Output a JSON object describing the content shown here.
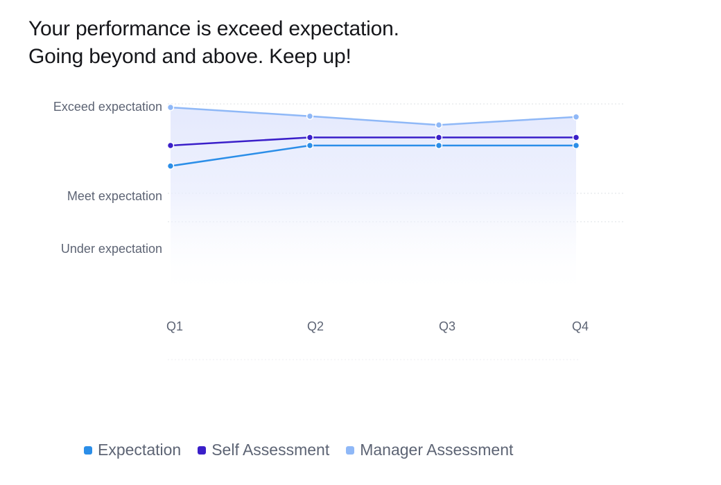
{
  "header": {
    "line1": "Your performance is exceed expectation.",
    "line2": "Going beyond and above. Keep up!"
  },
  "chart_data": {
    "type": "area",
    "x": [
      "Q1",
      "Q2",
      "Q3",
      "Q4"
    ],
    "y_levels": [
      "Under expectation",
      "Meet expectation",
      "Exceed expectation"
    ],
    "y_level_values": [
      1,
      2,
      3
    ],
    "ylim": [
      0.4,
      3
    ],
    "grid": true,
    "legend_position": "bottom",
    "series": [
      {
        "name": "Expectation",
        "color": "#2b8ee8",
        "values": [
          2.2,
          2.48,
          2.48,
          2.48
        ]
      },
      {
        "name": "Self Assessment",
        "color": "#3a1fc9",
        "values": [
          2.48,
          2.59,
          2.59,
          2.59
        ]
      },
      {
        "name": "Manager Assessment",
        "color": "#8fb8f7",
        "values": [
          3.0,
          2.88,
          2.76,
          2.87
        ]
      }
    ]
  }
}
